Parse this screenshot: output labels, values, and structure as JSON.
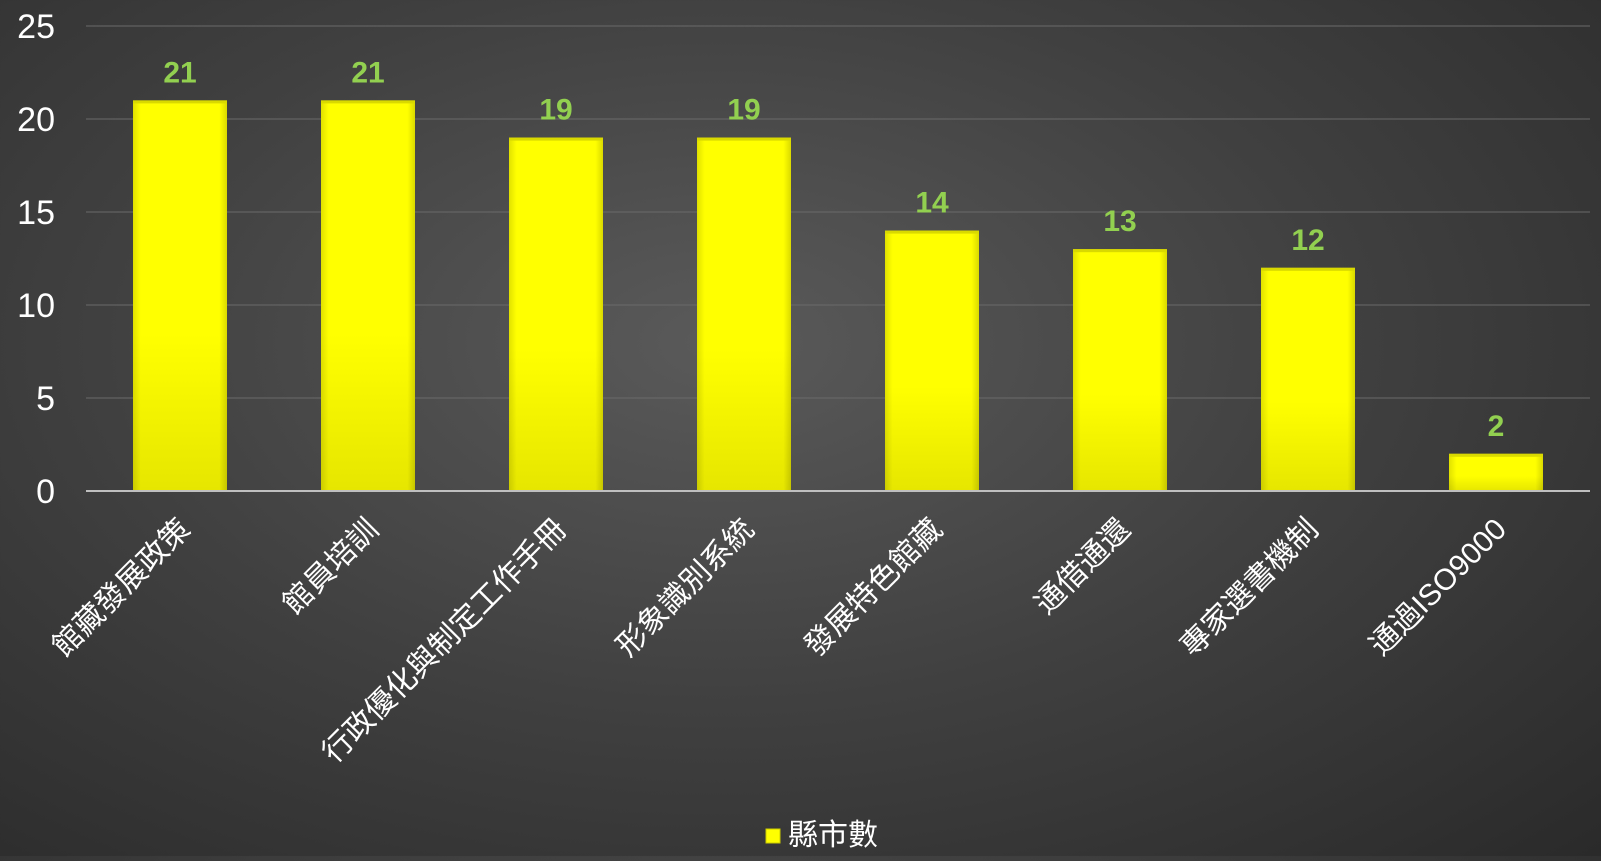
{
  "chart_data": {
    "type": "bar",
    "categories": [
      "館藏發展政策",
      "館員培訓",
      "行政優化與制定工作手冊",
      "形象識別系統",
      "發展特色館藏",
      "通借通還",
      "專家選書機制",
      "通過ISO9000"
    ],
    "series": [
      {
        "name": "縣市數",
        "values": [
          21,
          21,
          19,
          19,
          14,
          13,
          12,
          2
        ]
      }
    ],
    "ylim": [
      0,
      25
    ],
    "yticks": [
      0,
      5,
      10,
      15,
      20,
      25
    ],
    "grid": true,
    "legend": "bottom-center",
    "colors": {
      "bar": "#ffff00",
      "data_label": "#92d050",
      "axis_text": "#ffffff",
      "gridline": "#6a6a6a",
      "axis_line": "#bfbfbf"
    }
  }
}
